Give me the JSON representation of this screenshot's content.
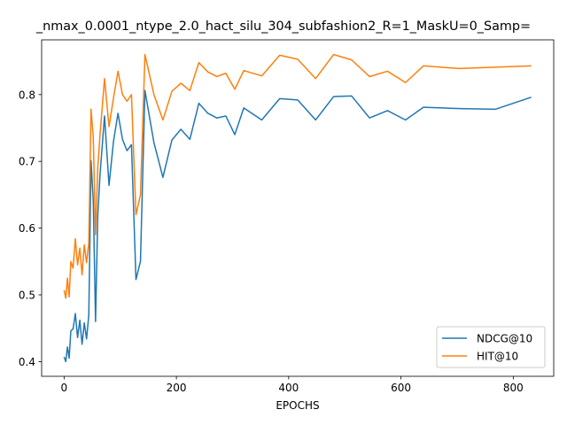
{
  "chart_data": {
    "type": "line",
    "title": "_nmax_0.0001_ntype_2.0_hact_silu_304_subfashion2_R=1_MaskU=0_Samp=",
    "xlabel": "EPOCHS",
    "ylabel": "",
    "xlim": [
      -40,
      872
    ],
    "ylim": [
      0.378,
      0.882
    ],
    "xticks": [
      0,
      200,
      400,
      600,
      800
    ],
    "yticks": [
      0.4,
      0.5,
      0.6,
      0.7,
      0.8
    ],
    "legend_position": "lower-right",
    "grid": false,
    "x": [
      0,
      3,
      6,
      9,
      12,
      16,
      20,
      24,
      28,
      32,
      36,
      40,
      44,
      48,
      52,
      56,
      60,
      64,
      72,
      80,
      88,
      96,
      104,
      112,
      120,
      128,
      136,
      144,
      160,
      176,
      192,
      208,
      224,
      240,
      256,
      272,
      288,
      304,
      320,
      352,
      384,
      416,
      448,
      480,
      512,
      544,
      576,
      608,
      640,
      704,
      768,
      832
    ],
    "series": [
      {
        "name": "NDCG@10",
        "color": "#1f77b4",
        "values": [
          0.407,
          0.4,
          0.422,
          0.405,
          0.446,
          0.449,
          0.472,
          0.436,
          0.462,
          0.426,
          0.458,
          0.434,
          0.47,
          0.701,
          0.64,
          0.46,
          0.62,
          0.68,
          0.768,
          0.664,
          0.73,
          0.772,
          0.733,
          0.716,
          0.725,
          0.523,
          0.55,
          0.806,
          0.728,
          0.676,
          0.732,
          0.748,
          0.733,
          0.787,
          0.772,
          0.765,
          0.768,
          0.74,
          0.78,
          0.762,
          0.794,
          0.792,
          0.762,
          0.797,
          0.798,
          0.765,
          0.776,
          0.762,
          0.781,
          0.779,
          0.778,
          0.796
        ]
      },
      {
        "name": "HIT@10",
        "color": "#ff7f0e",
        "values": [
          0.507,
          0.495,
          0.525,
          0.497,
          0.55,
          0.54,
          0.584,
          0.545,
          0.57,
          0.53,
          0.575,
          0.548,
          0.578,
          0.778,
          0.735,
          0.59,
          0.69,
          0.74,
          0.824,
          0.752,
          0.795,
          0.835,
          0.8,
          0.79,
          0.8,
          0.62,
          0.65,
          0.86,
          0.8,
          0.762,
          0.805,
          0.817,
          0.806,
          0.848,
          0.834,
          0.827,
          0.832,
          0.808,
          0.836,
          0.828,
          0.859,
          0.853,
          0.824,
          0.86,
          0.852,
          0.827,
          0.835,
          0.818,
          0.843,
          0.839,
          0.841,
          0.843
        ]
      }
    ]
  }
}
